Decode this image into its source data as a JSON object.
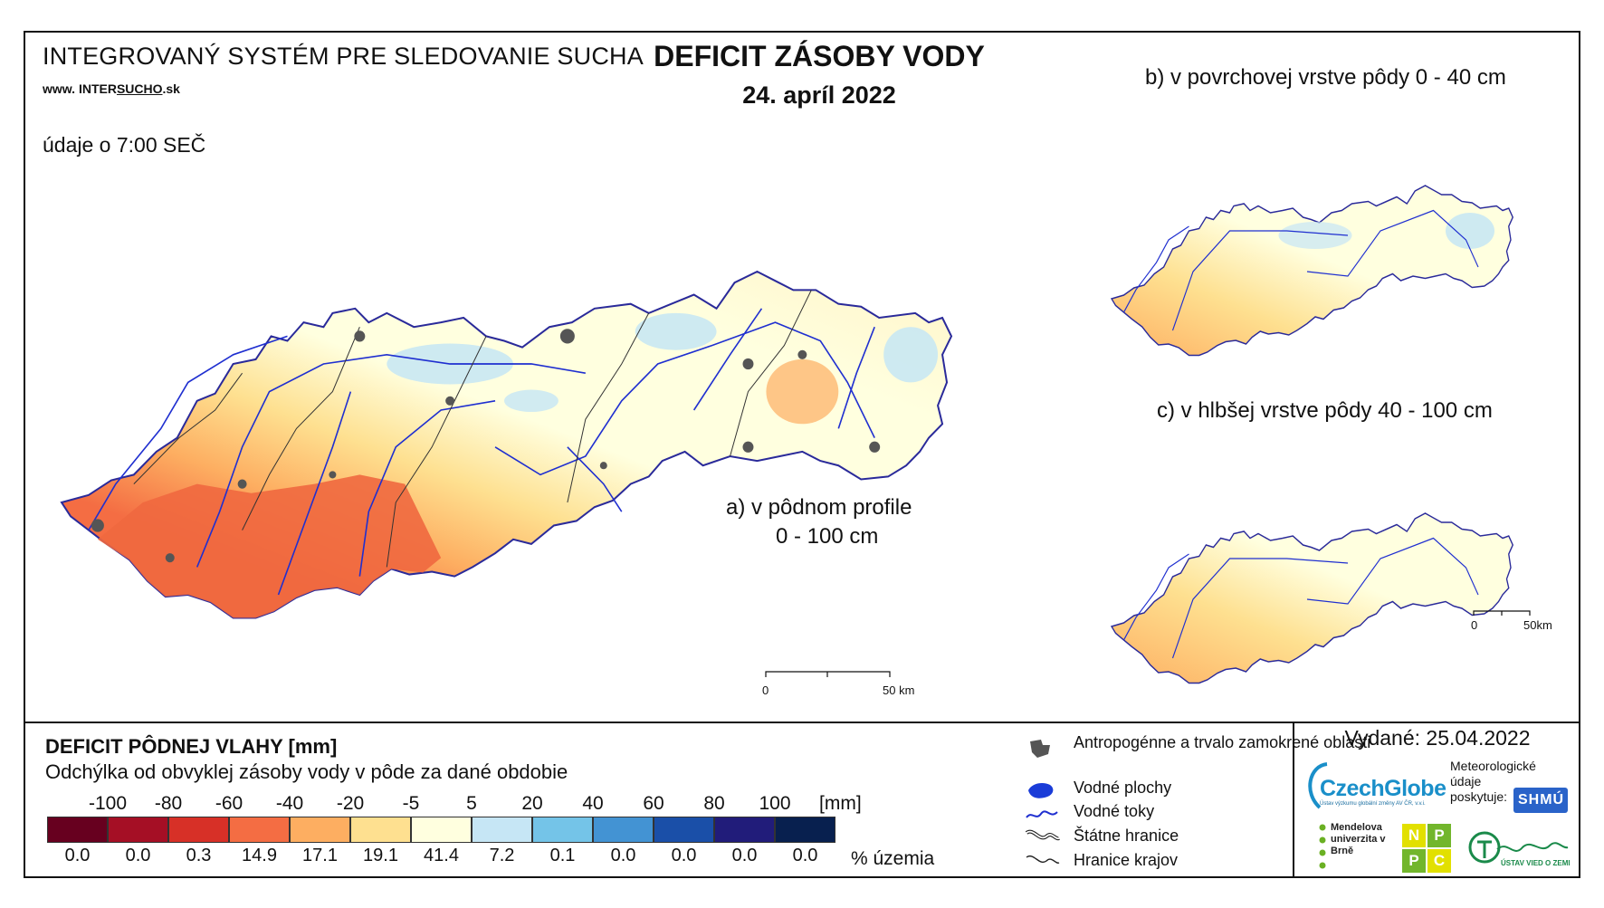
{
  "header": {
    "system": "INTEGROVANÝ SYSTÉM PRE SLEDOVANIE SUCHA",
    "web_prefix": "www.",
    "web_part1": "INTER",
    "web_part2": "SUCHO",
    "web_suffix": ".sk",
    "title": "DEFICIT ZÁSOBY VODY",
    "date": "24. apríl 2022",
    "time_note": "údaje o 7:00 SEČ"
  },
  "panels": {
    "a_line1": "a) v pôdnom profile",
    "a_line2": "0 - 100 cm",
    "b": "b) v povrchovej vrstve pôdy 0 - 40 cm",
    "c": "c) v hlbšej vrstve pôdy 40 - 100 cm"
  },
  "scale_bars": {
    "main_zero": "0",
    "main_end": "50 km",
    "small_zero": "0",
    "small_end": "50km"
  },
  "legend": {
    "title": "DEFICIT PÔDNEJ VLAHY [mm]",
    "subtitle": "Odchýlka od obvyklej zásoby vody v pôde za dané obdobie",
    "unit": "[mm]",
    "pct_unit": "% územia",
    "breaks": [
      "-100",
      "-80",
      "-60",
      "-40",
      "-20",
      "-5",
      "5",
      "20",
      "40",
      "60",
      "80",
      "100"
    ],
    "classes": [
      {
        "color": "#67001f",
        "pct": "0.0"
      },
      {
        "color": "#a50f25",
        "pct": "0.0"
      },
      {
        "color": "#d73027",
        "pct": "0.3"
      },
      {
        "color": "#f46d43",
        "pct": "14.9"
      },
      {
        "color": "#fdae61",
        "pct": "17.1"
      },
      {
        "color": "#fee090",
        "pct": "19.1"
      },
      {
        "color": "#ffffdf",
        "pct": "41.4"
      },
      {
        "color": "#c6e6f5",
        "pct": "7.2"
      },
      {
        "color": "#74c4e8",
        "pct": "0.1"
      },
      {
        "color": "#4393d3",
        "pct": "0.0"
      },
      {
        "color": "#1a4fa8",
        "pct": "0.0"
      },
      {
        "color": "#211c7a",
        "pct": "0.0"
      },
      {
        "color": "#08204f",
        "pct": "0.0"
      }
    ]
  },
  "key": {
    "anthropogenic": "Antropogénne a trvalo zamokrené oblasti",
    "water_bodies": "Vodné plochy",
    "rivers": "Vodné toky",
    "state_borders": "Štátne hranice",
    "region_borders": "Hranice krajov"
  },
  "credits": {
    "issued": "Vydané: 25.04.2022",
    "czechglobe": "CzechGlobe",
    "czechglobe_sub": "Ústav výzkumu globální změny AV ČR, v.v.i.",
    "meteo": "Meteorologické údaje poskytuje:",
    "shmu": "SHMÚ",
    "mendel": "Mendelova univerzita v Brně",
    "npc": [
      "N",
      "P",
      "P",
      "C"
    ],
    "uvz": "ÚSTAV VIED O ZEMI"
  }
}
